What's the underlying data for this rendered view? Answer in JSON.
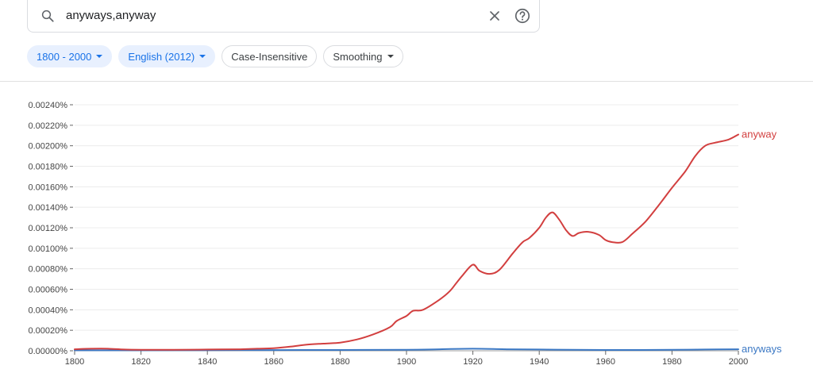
{
  "search": {
    "query": "anyways,anyway"
  },
  "icons": {
    "search": "search-icon",
    "clear": "close-icon",
    "help": "help-icon"
  },
  "filters": {
    "year_range": "1800 - 2000",
    "corpus": "English (2012)",
    "case": "Case-Insensitive",
    "smoothing": "Smoothing"
  },
  "colors": {
    "anyway": "#d23f3f",
    "anyways": "#3b78c4",
    "chip_selected_bg": "#e8f0fe",
    "chip_selected_text": "#1a73e8"
  },
  "chart_data": {
    "type": "line",
    "title": "",
    "xlabel": "",
    "ylabel": "",
    "xlim": [
      1800,
      2000
    ],
    "ylim": [
      0,
      0.0024
    ],
    "y_unit": "%",
    "xticks": [
      1800,
      1820,
      1840,
      1860,
      1880,
      1900,
      1920,
      1940,
      1960,
      1980,
      2000
    ],
    "yticks": [
      "0.00000%",
      "0.00020%",
      "0.00040%",
      "0.00060%",
      "0.00080%",
      "0.00100%",
      "0.00120%",
      "0.00140%",
      "0.00160%",
      "0.00180%",
      "0.00200%",
      "0.00220%",
      "0.00240%"
    ],
    "grid": true,
    "legend": "line-end labels",
    "series": [
      {
        "name": "anyway",
        "color": "#d23f3f",
        "x": [
          1800,
          1805,
          1810,
          1815,
          1820,
          1830,
          1840,
          1850,
          1855,
          1860,
          1865,
          1870,
          1875,
          1880,
          1885,
          1890,
          1895,
          1897,
          1900,
          1902,
          1905,
          1910,
          1913,
          1915,
          1917,
          1920,
          1922,
          1925,
          1928,
          1932,
          1935,
          1937,
          1940,
          1942,
          1944,
          1946,
          1948,
          1950,
          1952,
          1955,
          1958,
          1960,
          1962,
          1965,
          1968,
          1972,
          1976,
          1980,
          1984,
          1987,
          1990,
          1993,
          1997,
          2000
        ],
        "y": [
          1.5e-05,
          2e-05,
          2e-05,
          1.2e-05,
          1e-05,
          1e-05,
          1.2e-05,
          1.5e-05,
          2e-05,
          2.5e-05,
          4e-05,
          6e-05,
          7e-05,
          8e-05,
          0.00011,
          0.00016,
          0.00023,
          0.00029,
          0.00034,
          0.00039,
          0.0004,
          0.0005,
          0.00058,
          0.00066,
          0.00074,
          0.00084,
          0.00078,
          0.00075,
          0.00079,
          0.00095,
          0.00106,
          0.0011,
          0.0012,
          0.0013,
          0.00135,
          0.00128,
          0.00118,
          0.00112,
          0.00115,
          0.00116,
          0.00113,
          0.00108,
          0.00106,
          0.00106,
          0.00114,
          0.00126,
          0.00142,
          0.00159,
          0.00175,
          0.0019,
          0.002,
          0.00203,
          0.00206,
          0.00211
        ]
      },
      {
        "name": "anyways",
        "color": "#3b78c4",
        "x": [
          1800,
          1820,
          1840,
          1860,
          1880,
          1900,
          1910,
          1920,
          1930,
          1940,
          1950,
          1960,
          1970,
          1980,
          1990,
          2000
        ],
        "y": [
          5e-06,
          5e-06,
          6e-06,
          7e-06,
          8e-06,
          1e-05,
          1.5e-05,
          2e-05,
          1.5e-05,
          1.2e-05,
          1e-05,
          8e-06,
          8e-06,
          1e-05,
          1.2e-05,
          1.5e-05
        ]
      }
    ]
  }
}
